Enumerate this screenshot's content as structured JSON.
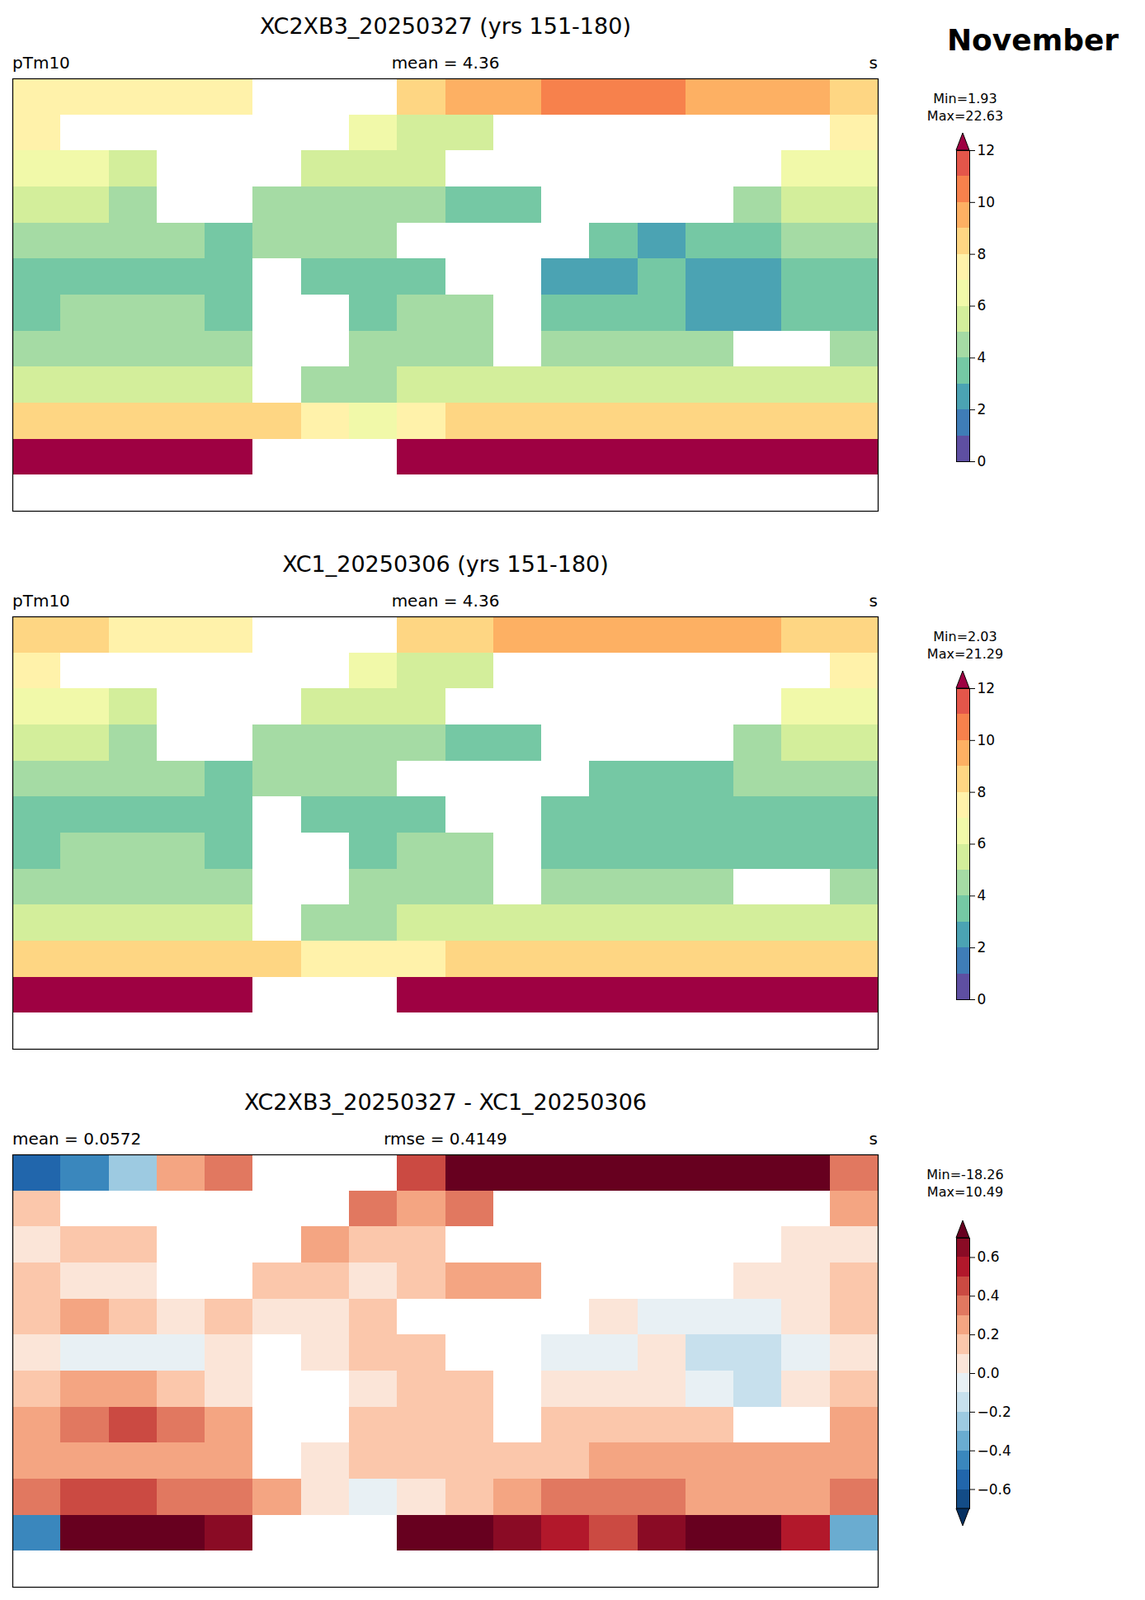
{
  "title": "November",
  "chart_data": [
    {
      "type": "heatmap",
      "title": "XC2XB3_20250327 (yrs 151-180)",
      "annotations": [
        "pTm10",
        "mean = 4.36",
        "s"
      ],
      "tick_labels": false,
      "xlim": [
        -180,
        180
      ],
      "ylim": [
        -90,
        90
      ],
      "x": [
        -170,
        -150,
        -130,
        -110,
        -90,
        -70,
        -50,
        -30,
        -10,
        10,
        30,
        50,
        70,
        90,
        110,
        130,
        150,
        170
      ],
      "y": [
        82.5,
        67.5,
        52.5,
        37.5,
        22.5,
        7.5,
        -7.5,
        -22.5,
        -37.5,
        -52.5,
        -67.5,
        -82.5
      ],
      "values": [
        [
          7.9,
          7.5,
          7.2,
          7.7,
          7.3,
          null,
          null,
          null,
          8.4,
          9.2,
          9.9,
          10.2,
          10.5,
          10.4,
          9.8,
          9.8,
          9.2,
          8.8
        ],
        [
          7.1,
          null,
          null,
          null,
          null,
          null,
          null,
          6.3,
          5.7,
          5.8,
          null,
          null,
          null,
          null,
          null,
          null,
          null,
          7.2
        ],
        [
          6.5,
          6.1,
          5.6,
          null,
          null,
          null,
          5.7,
          5.6,
          5.1,
          null,
          null,
          null,
          null,
          null,
          null,
          null,
          6.0,
          6.5
        ],
        [
          5.1,
          5.0,
          4.5,
          null,
          null,
          4.1,
          4.6,
          4.5,
          4.6,
          3.7,
          3.2,
          null,
          null,
          null,
          null,
          4.0,
          5.0,
          5.1
        ],
        [
          4.1,
          4.2,
          4.1,
          4.0,
          3.6,
          4.0,
          4.5,
          4.6,
          null,
          null,
          null,
          null,
          3.0,
          2.9,
          3.4,
          3.9,
          4.0,
          4.1
        ],
        [
          3.5,
          3.4,
          3.4,
          3.4,
          3.5,
          null,
          3.5,
          3.6,
          3.6,
          null,
          null,
          2.9,
          2.9,
          3.0,
          2.8,
          2.8,
          3.4,
          3.5
        ],
        [
          3.6,
          4.2,
          4.2,
          4.1,
          3.5,
          null,
          null,
          3.5,
          4.1,
          4.1,
          null,
          3.5,
          3.5,
          3.5,
          2.9,
          2.8,
          3.5,
          3.6
        ],
        [
          4.2,
          4.3,
          4.9,
          4.8,
          4.2,
          null,
          null,
          4.1,
          4.1,
          4.1,
          null,
          4.1,
          4.6,
          4.6,
          4.1,
          null,
          null,
          4.2
        ],
        [
          5.2,
          5.2,
          5.2,
          5.2,
          5.2,
          null,
          4.5,
          4.6,
          5.1,
          5.1,
          5.1,
          5.1,
          5.7,
          5.7,
          5.7,
          5.2,
          5.2,
          5.2
        ],
        [
          8.3,
          8.4,
          8.9,
          8.8,
          8.3,
          8.2,
          7.5,
          6.9,
          7.5,
          8.1,
          8.2,
          8.8,
          8.8,
          8.3,
          8.2,
          8.2,
          8.2,
          8.3
        ],
        [
          12.5,
          14.3,
          15.0,
          14.9,
          14.1,
          null,
          null,
          null,
          13.2,
          13.8,
          14.1,
          14.0,
          14.4,
          14.6,
          14.2,
          14.3,
          13.5,
          12.6
        ],
        [
          null,
          null,
          null,
          null,
          null,
          null,
          null,
          null,
          null,
          null,
          null,
          null,
          null,
          null,
          null,
          null,
          null,
          null
        ]
      ],
      "colorbar": {
        "annotations": [
          "Min=1.93",
          "Max=22.63"
        ],
        "lim": [
          0,
          12
        ],
        "ticks": [
          0,
          2,
          4,
          6,
          8,
          10,
          12
        ],
        "bounds": [
          0,
          1,
          2,
          3,
          4,
          5,
          6,
          7,
          8,
          9,
          10,
          11,
          12
        ],
        "colors": [
          "#5e4fa2",
          "#3f7db7",
          "#4ba3b3",
          "#75c8a4",
          "#a5dba4",
          "#d3ee9b",
          "#f1f9a9",
          "#fff2aa",
          "#fed683",
          "#fdb063",
          "#f7814c",
          "#e4564a",
          "#9e0142"
        ]
      }
    },
    {
      "type": "heatmap",
      "title": "XC1_20250306 (yrs 151-180)",
      "annotations": [
        "pTm10",
        "mean = 4.36",
        "s"
      ],
      "tick_labels": false,
      "xlim": [
        -180,
        180
      ],
      "ylim": [
        -90,
        90
      ],
      "x": [
        -170,
        -150,
        -130,
        -110,
        -90,
        -70,
        -50,
        -30,
        -10,
        10,
        30,
        50,
        70,
        90,
        110,
        130,
        150,
        170
      ],
      "y": [
        82.5,
        67.5,
        52.5,
        37.5,
        22.5,
        7.5,
        -7.5,
        -22.5,
        -37.5,
        -52.5,
        -67.5,
        -82.5
      ],
      "values": [
        [
          8.5,
          8.0,
          7.5,
          7.5,
          7.0,
          null,
          null,
          null,
          8.0,
          8.5,
          9.0,
          9.0,
          9.5,
          9.5,
          9.0,
          9.0,
          8.5,
          8.5
        ],
        [
          7.0,
          null,
          null,
          null,
          null,
          null,
          null,
          6.0,
          5.5,
          5.5,
          null,
          null,
          null,
          null,
          null,
          null,
          null,
          7.0
        ],
        [
          6.5,
          6.0,
          5.5,
          null,
          null,
          null,
          5.5,
          5.5,
          5.0,
          null,
          null,
          null,
          null,
          null,
          null,
          null,
          6.0,
          6.5
        ],
        [
          5.0,
          5.0,
          4.5,
          null,
          null,
          4.0,
          4.5,
          4.5,
          4.5,
          3.5,
          3.0,
          null,
          null,
          null,
          null,
          4.0,
          5.0,
          5.0
        ],
        [
          4.0,
          4.0,
          4.0,
          4.0,
          3.5,
          4.0,
          4.5,
          4.5,
          null,
          null,
          null,
          null,
          3.0,
          3.0,
          3.5,
          4.0,
          4.0,
          4.0
        ],
        [
          3.5,
          3.5,
          3.5,
          3.5,
          3.5,
          null,
          3.5,
          3.5,
          3.5,
          null,
          null,
          3.0,
          3.0,
          3.0,
          3.0,
          3.0,
          3.5,
          3.5
        ],
        [
          3.5,
          4.0,
          4.0,
          4.0,
          3.5,
          null,
          null,
          3.5,
          4.0,
          4.0,
          null,
          3.5,
          3.5,
          3.5,
          3.0,
          3.0,
          3.5,
          3.5
        ],
        [
          4.0,
          4.0,
          4.5,
          4.5,
          4.0,
          null,
          null,
          4.0,
          4.0,
          4.0,
          null,
          4.0,
          4.5,
          4.5,
          4.0,
          null,
          null,
          4.0
        ],
        [
          5.0,
          5.0,
          5.0,
          5.0,
          5.0,
          null,
          4.5,
          4.5,
          5.0,
          5.0,
          5.0,
          5.0,
          5.5,
          5.5,
          5.5,
          5.0,
          5.0,
          5.0
        ],
        [
          8.0,
          8.0,
          8.5,
          8.5,
          8.0,
          8.0,
          7.5,
          7.0,
          7.5,
          8.0,
          8.0,
          8.5,
          8.5,
          8.0,
          8.0,
          8.0,
          8.0,
          8.0
        ],
        [
          13.0,
          13.5,
          14.0,
          14.0,
          13.5,
          null,
          null,
          null,
          12.5,
          13.0,
          13.5,
          13.5,
          14.0,
          14.0,
          13.5,
          13.5,
          13.0,
          13.0
        ],
        [
          null,
          null,
          null,
          null,
          null,
          null,
          null,
          null,
          null,
          null,
          null,
          null,
          null,
          null,
          null,
          null,
          null,
          null
        ]
      ],
      "colorbar": {
        "annotations": [
          "Min=2.03",
          "Max=21.29"
        ],
        "lim": [
          0,
          12
        ],
        "ticks": [
          0,
          2,
          4,
          6,
          8,
          10,
          12
        ],
        "bounds": [
          0,
          1,
          2,
          3,
          4,
          5,
          6,
          7,
          8,
          9,
          10,
          11,
          12
        ],
        "colors": [
          "#5e4fa2",
          "#3f7db7",
          "#4ba3b3",
          "#75c8a4",
          "#a5dba4",
          "#d3ee9b",
          "#f1f9a9",
          "#fff2aa",
          "#fed683",
          "#fdb063",
          "#f7814c",
          "#e4564a",
          "#9e0142"
        ]
      }
    },
    {
      "type": "heatmap",
      "title": "XC2XB3_20250327 - XC1_20250306",
      "annotations": [
        "mean = 0.0572",
        "rmse = 0.4149",
        "s"
      ],
      "tick_labels": false,
      "xlim": [
        -180,
        180
      ],
      "ylim": [
        -90,
        90
      ],
      "x": [
        -170,
        -150,
        -130,
        -110,
        -90,
        -70,
        -50,
        -30,
        -10,
        10,
        30,
        50,
        70,
        90,
        110,
        130,
        150,
        170
      ],
      "y": [
        82.5,
        67.5,
        52.5,
        37.5,
        22.5,
        7.5,
        -7.5,
        -22.5,
        -37.5,
        -52.5,
        -67.5,
        -82.5
      ],
      "values": [
        [
          -0.6,
          -0.5,
          -0.3,
          0.2,
          0.3,
          null,
          null,
          null,
          0.4,
          0.7,
          0.9,
          1.2,
          1.0,
          0.9,
          0.8,
          0.8,
          0.7,
          0.3
        ],
        [
          0.1,
          null,
          null,
          null,
          null,
          null,
          null,
          0.3,
          0.2,
          0.3,
          null,
          null,
          null,
          null,
          null,
          null,
          null,
          0.2
        ],
        [
          0.0,
          0.1,
          0.1,
          null,
          null,
          null,
          0.2,
          0.1,
          0.1,
          null,
          null,
          null,
          null,
          null,
          null,
          null,
          0.0,
          0.0
        ],
        [
          0.1,
          0.0,
          0.0,
          null,
          null,
          0.1,
          0.1,
          0.0,
          0.1,
          0.2,
          0.2,
          null,
          null,
          null,
          null,
          0.0,
          0.0,
          0.1
        ],
        [
          0.1,
          0.2,
          0.1,
          0.0,
          0.1,
          0.0,
          0.0,
          0.1,
          null,
          null,
          null,
          null,
          0.0,
          -0.1,
          -0.1,
          -0.1,
          0.0,
          0.1
        ],
        [
          0.0,
          -0.1,
          -0.1,
          -0.1,
          0.0,
          null,
          0.0,
          0.1,
          0.1,
          null,
          null,
          -0.1,
          -0.1,
          0.0,
          -0.2,
          -0.2,
          -0.1,
          0.0
        ],
        [
          0.1,
          0.2,
          0.2,
          0.1,
          0.0,
          null,
          null,
          0.0,
          0.1,
          0.1,
          null,
          0.0,
          0.0,
          0.0,
          -0.1,
          -0.2,
          0.0,
          0.1
        ],
        [
          0.2,
          0.3,
          0.4,
          0.3,
          0.2,
          null,
          null,
          0.1,
          0.1,
          0.1,
          null,
          0.1,
          0.1,
          0.1,
          0.1,
          null,
          null,
          0.2
        ],
        [
          0.2,
          0.2,
          0.2,
          0.2,
          0.2,
          null,
          0.0,
          0.1,
          0.1,
          0.1,
          0.1,
          0.1,
          0.2,
          0.2,
          0.2,
          0.2,
          0.2,
          0.2
        ],
        [
          0.3,
          0.4,
          0.4,
          0.3,
          0.3,
          0.2,
          0.0,
          -0.1,
          0.0,
          0.1,
          0.2,
          0.3,
          0.3,
          0.3,
          0.2,
          0.2,
          0.2,
          0.3
        ],
        [
          -0.5,
          0.8,
          1.0,
          0.9,
          0.6,
          null,
          null,
          null,
          0.7,
          0.8,
          0.6,
          0.5,
          0.4,
          0.6,
          0.7,
          0.8,
          0.5,
          -0.4
        ],
        [
          null,
          null,
          null,
          null,
          null,
          null,
          null,
          null,
          null,
          null,
          null,
          null,
          null,
          null,
          null,
          null,
          null,
          null
        ]
      ],
      "colorbar": {
        "annotations": [
          "Min=-18.26",
          "Max=10.49"
        ],
        "lim": [
          -0.7,
          0.7
        ],
        "ticks": [
          {
            "value": -0.6,
            "label": "−0.6"
          },
          {
            "value": -0.4,
            "label": "−0.4"
          },
          {
            "value": -0.2,
            "label": "−0.2"
          },
          {
            "value": 0,
            "label": "0.0"
          },
          0.2,
          0.4,
          0.6
        ],
        "bounds": [
          -0.7,
          -0.6,
          -0.5,
          -0.4,
          -0.3,
          -0.2,
          -0.1,
          0,
          0.1,
          0.2,
          0.3,
          0.4,
          0.5,
          0.6,
          0.7
        ],
        "colors": [
          "#053061",
          "#134c87",
          "#2166ac",
          "#3a87bd",
          "#6aacd0",
          "#9dcae1",
          "#c7e0ed",
          "#e8f0f4",
          "#fbe5d8",
          "#fbc7ab",
          "#f4a582",
          "#e17860",
          "#cb4a42",
          "#b2182b",
          "#8a0b25",
          "#67001f"
        ]
      }
    }
  ]
}
